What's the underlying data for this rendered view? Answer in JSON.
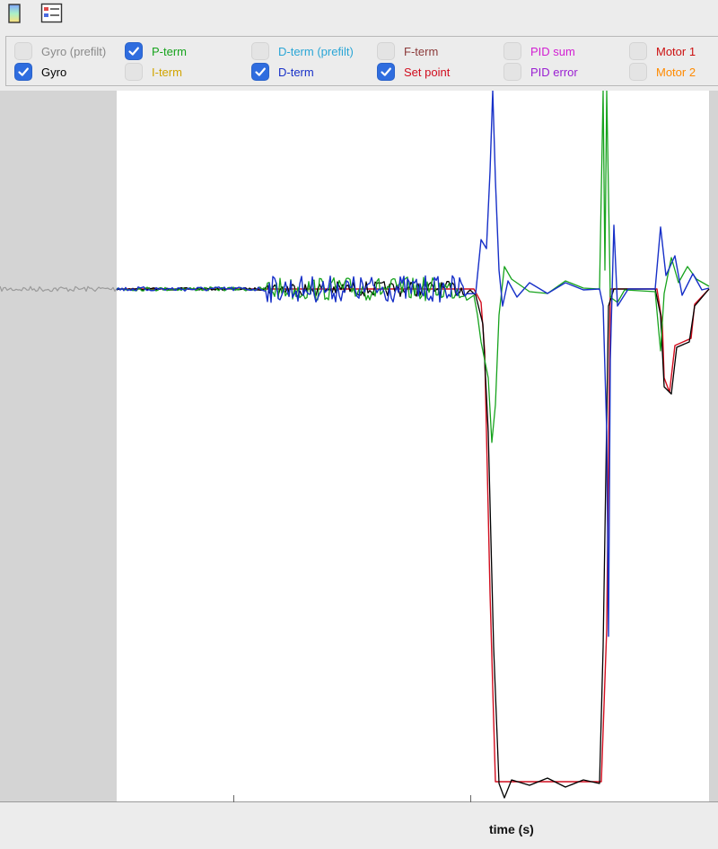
{
  "toolbar": {
    "buttons": [
      {
        "name": "color-scale-icon"
      },
      {
        "name": "legend-toggle-icon"
      }
    ]
  },
  "legend": {
    "items": [
      {
        "label": "Gyro (prefilt)",
        "checked": false,
        "color": "#8a8a8a"
      },
      {
        "label": "Gyro",
        "checked": true,
        "color": "#000000"
      },
      {
        "label": "P-term",
        "checked": true,
        "color": "#17a31d"
      },
      {
        "label": "I-term",
        "checked": false,
        "color": "#d1a400"
      },
      {
        "label": "D-term (prefilt)",
        "checked": false,
        "color": "#2aa6d6"
      },
      {
        "label": "D-term",
        "checked": true,
        "color": "#1730c8"
      },
      {
        "label": "F-term",
        "checked": false,
        "color": "#8b3a3a"
      },
      {
        "label": "Set point",
        "checked": true,
        "color": "#d10d1e"
      },
      {
        "label": "PID sum",
        "checked": false,
        "color": "#d21fd2"
      },
      {
        "label": "PID error",
        "checked": false,
        "color": "#9a1fd2"
      },
      {
        "label": "Motor 1",
        "checked": false,
        "color": "#cc1111"
      },
      {
        "label": "Motor 2",
        "checked": false,
        "color": "#ff8a00"
      }
    ]
  },
  "xaxis": {
    "label": "time (s)"
  },
  "colors": {
    "plot_background": "#ffffff",
    "margin_background": "#d4d4d4",
    "checkbox_on": "#2f6ddf"
  }
}
